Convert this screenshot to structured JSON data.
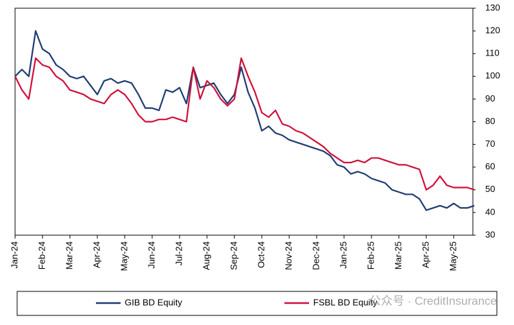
{
  "chart_data": {
    "type": "line",
    "categories": [
      "Jan-24",
      null,
      null,
      null,
      "Feb-24",
      null,
      null,
      null,
      "Mar-24",
      null,
      null,
      null,
      "Apr-24",
      null,
      null,
      null,
      "May-24",
      null,
      null,
      null,
      "Jun-24",
      null,
      null,
      null,
      "Jul-24",
      null,
      null,
      null,
      "Aug-24",
      null,
      null,
      null,
      "Sep-24",
      null,
      null,
      null,
      "Oct-24",
      null,
      null,
      null,
      "Nov-24",
      null,
      null,
      null,
      "Dec-24",
      null,
      null,
      null,
      "Jan-25",
      null,
      null,
      null,
      "Feb-25",
      null,
      null,
      null,
      "Mar-25",
      null,
      null,
      null,
      "Apr-25",
      null,
      null,
      null,
      "May-25",
      null,
      null,
      null
    ],
    "series": [
      {
        "name": "GIB BD Equity",
        "color": "#1f3c73",
        "values": [
          100,
          103,
          100,
          120,
          112,
          110,
          105,
          103,
          100,
          99,
          100,
          96,
          92,
          98,
          99,
          97,
          98,
          97,
          92,
          86,
          86,
          85,
          94,
          93,
          95,
          88,
          104,
          95,
          96,
          97,
          92,
          88,
          92,
          104,
          93,
          86,
          76,
          78,
          75,
          74,
          72,
          71,
          70,
          69,
          68,
          67,
          65,
          61,
          60,
          57,
          58,
          57,
          55,
          54,
          53,
          50,
          49,
          48,
          48,
          46,
          41,
          42,
          43,
          42,
          44,
          42,
          42,
          43
        ]
      },
      {
        "name": "FSBL BD Equity",
        "color": "#d0103a",
        "values": [
          100,
          94,
          90,
          108,
          105,
          104,
          100,
          98,
          94,
          93,
          92,
          90,
          89,
          88,
          92,
          94,
          92,
          88,
          83,
          80,
          80,
          81,
          81,
          82,
          81,
          80,
          104,
          90,
          98,
          95,
          90,
          87,
          90,
          108,
          100,
          93,
          84,
          82,
          85,
          79,
          78,
          76,
          75,
          73,
          71,
          69,
          66,
          64,
          62,
          62,
          63,
          62,
          64,
          64,
          63,
          62,
          61,
          61,
          60,
          59,
          50,
          52,
          56,
          52,
          51,
          51,
          51,
          50
        ]
      }
    ],
    "ylim": [
      30,
      130
    ],
    "yticks": [
      30,
      40,
      50,
      60,
      70,
      80,
      90,
      100,
      110,
      120,
      130
    ],
    "legend": "bottom",
    "watermark": "公众号 · CreditInsurance"
  }
}
